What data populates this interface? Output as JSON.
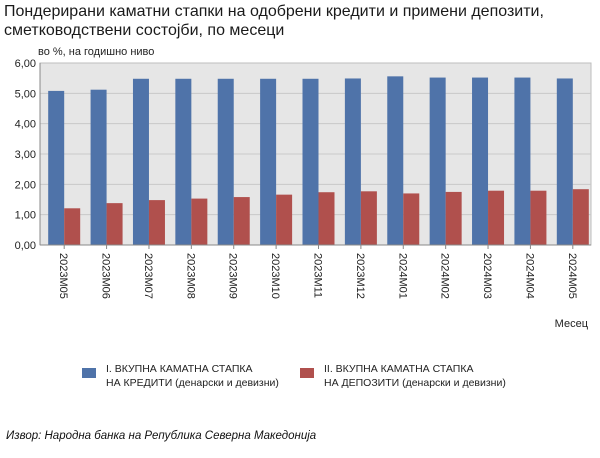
{
  "title": {
    "line1": "Пондерирани каматни стапки на одобрени кредити и примени депозити,",
    "line2": "сметководствени  состојби, по месеци"
  },
  "unit_label": "во %, на годишно ниво",
  "xaxis_label": "Месец",
  "source": "Извор: Народна банка на Република Северна Македонија",
  "legend": [
    {
      "line1": "I. ВКУПНА КАМАТНА СТАПКА",
      "line2": "НА КРЕДИТИ (денарски и девизни)",
      "color": "#4f73a9"
    },
    {
      "line1": "II. ВКУПНА КАМАТНА СТАПКА",
      "line2": "НА ДЕПОЗИТИ (денарски и девизни)",
      "color": "#b0504d"
    }
  ],
  "chart_data": {
    "type": "bar",
    "categories": [
      "2023М05",
      "2023М06",
      "2023М07",
      "2023М08",
      "2023М09",
      "2023М10",
      "2023М11",
      "2023М12",
      "2024М01",
      "2024М02",
      "2024М03",
      "2024М04",
      "2024М05"
    ],
    "series": [
      {
        "name": "I. ВКУПНА КАМАТНА СТАПКА НА КРЕДИТИ (денарски и девизни)",
        "color": "#4f73a9",
        "values": [
          5.08,
          5.12,
          5.48,
          5.48,
          5.48,
          5.48,
          5.48,
          5.49,
          5.56,
          5.52,
          5.52,
          5.52,
          5.49
        ]
      },
      {
        "name": "II. ВКУПНА КАМАТНА СТАПКА НА ДЕПОЗИТИ (денарски и девизни)",
        "color": "#b0504d",
        "values": [
          1.21,
          1.38,
          1.48,
          1.53,
          1.58,
          1.66,
          1.74,
          1.77,
          1.7,
          1.75,
          1.79,
          1.79,
          1.84
        ]
      }
    ],
    "ylim": [
      0,
      6
    ],
    "yticks": [
      "0,00",
      "1,00",
      "2,00",
      "3,00",
      "4,00",
      "5,00",
      "6,00"
    ],
    "grid": true,
    "legend_position": "bottom"
  }
}
